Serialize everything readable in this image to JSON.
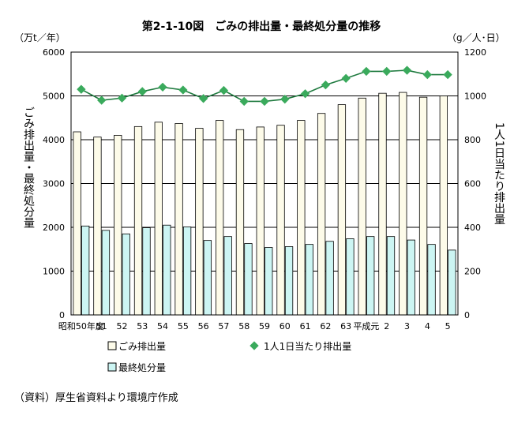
{
  "chart_data": {
    "type": "bar+line",
    "title": "第2-1-10図　ごみの排出量・最終処分量の推移",
    "categories": [
      "昭和50年度",
      "51",
      "52",
      "53",
      "54",
      "55",
      "56",
      "57",
      "58",
      "59",
      "60",
      "61",
      "62",
      "63",
      "平成元",
      "2",
      "3",
      "4",
      "5"
    ],
    "series": [
      {
        "name": "ごみ排出量",
        "type": "bar",
        "axis": "left",
        "color": "#fdfbe9",
        "values": [
          4180,
          4060,
          4100,
          4300,
          4400,
          4370,
          4260,
          4440,
          4230,
          4290,
          4330,
          4440,
          4600,
          4800,
          4950,
          5060,
          5080,
          4970,
          5000
        ]
      },
      {
        "name": "最終処分量",
        "type": "bar",
        "axis": "left",
        "color": "#ccf5f3",
        "values": [
          2030,
          1930,
          1850,
          1990,
          2050,
          2010,
          1700,
          1790,
          1630,
          1540,
          1560,
          1610,
          1680,
          1740,
          1790,
          1790,
          1710,
          1610,
          1480
        ]
      },
      {
        "name": "1人1日当たり排出量",
        "type": "line",
        "axis": "right",
        "color": "#3aaa5c",
        "values": [
          1030,
          980,
          990,
          1020,
          1040,
          1027,
          988,
          1025,
          975,
          975,
          985,
          1010,
          1050,
          1080,
          1112,
          1112,
          1117,
          1097,
          1097
        ]
      }
    ],
    "left_axis": {
      "unit": "（万t／年）",
      "label": "ごみ排出量・最終処分量",
      "range": [
        0,
        6000
      ],
      "ticks": [
        "0",
        "1000",
        "2000",
        "3000",
        "4000",
        "5000",
        "6000"
      ]
    },
    "right_axis": {
      "unit": "（g／人･日）",
      "label": "1人1日当たり排出量",
      "range": [
        0,
        1200
      ],
      "ticks": [
        "0",
        "200",
        "400",
        "600",
        "800",
        "1000",
        "1200"
      ]
    },
    "grid": "horizontal",
    "legend": {
      "placement": "bottom"
    },
    "source": "（資料）厚生省資料より環境庁作成"
  }
}
